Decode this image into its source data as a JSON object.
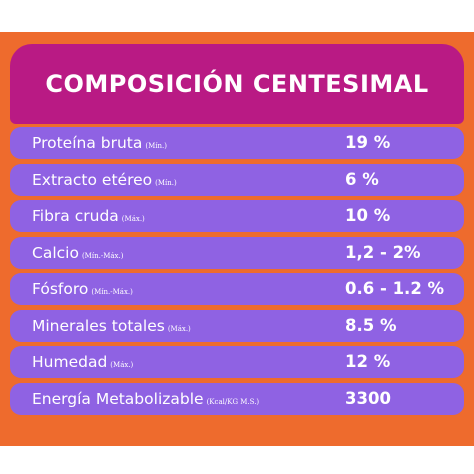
{
  "title": "COMPOSICIÓN CENTESIMAL",
  "colors": {
    "background": "#ee6b2d",
    "header": "#b91a84",
    "row": "#8f62e3",
    "text": "#ffffff"
  },
  "rows": [
    {
      "name": "Proteína bruta",
      "qualifier": "(Mín.)",
      "value": "19 %"
    },
    {
      "name": "Extracto etéreo",
      "qualifier": "(Mín.)",
      "value": "6 %"
    },
    {
      "name": "Fibra cruda",
      "qualifier": "(Máx.)",
      "value": "10 %"
    },
    {
      "name": "Calcio",
      "qualifier": "(Mín.-Máx.)",
      "value": "1,2 - 2%"
    },
    {
      "name": "Fósforo",
      "qualifier": "(Mín.-Máx.)",
      "value": "0.6 - 1.2 %"
    },
    {
      "name": "Minerales totales",
      "qualifier": "(Máx.)",
      "value": "8.5 %"
    },
    {
      "name": "Humedad",
      "qualifier": "(Máx.)",
      "value": "12 %"
    },
    {
      "name": "Energía Metabolizable",
      "qualifier": "(Kcal/KG M.S.)",
      "value": "3300"
    }
  ]
}
